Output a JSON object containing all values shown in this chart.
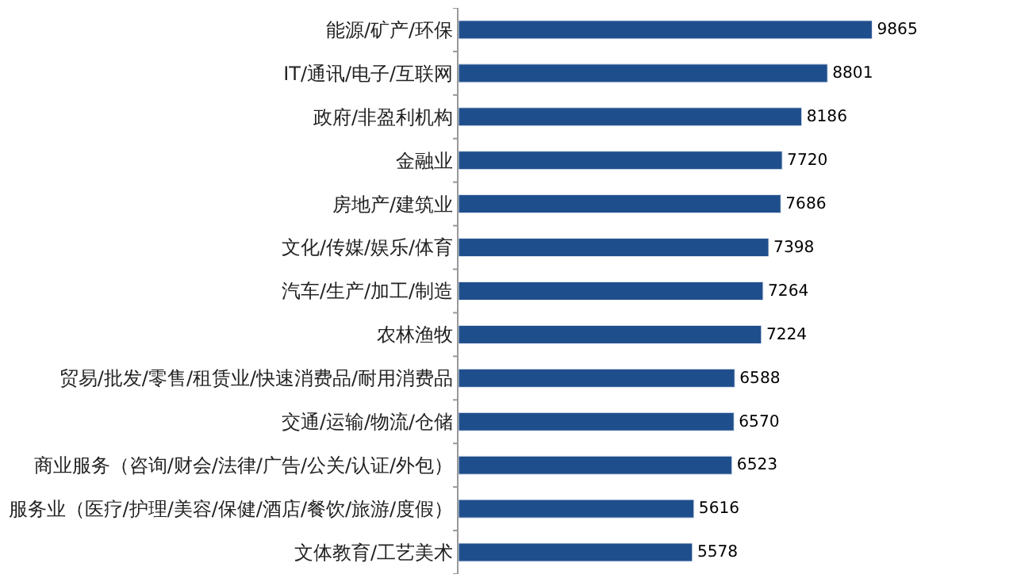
{
  "chart_data": {
    "type": "bar",
    "orientation": "horizontal",
    "categories": [
      "能源/矿产/环保",
      "IT/通讯/电子/互联网",
      "政府/非盈利机构",
      "金融业",
      "房地产/建筑业",
      "文化/传媒/娱乐/体育",
      "汽车/生产/加工/制造",
      "农林渔牧",
      "贸易/批发/零售/租赁业/快速消费品/耐用消费品",
      "交通/运输/物流/仓储",
      "商业服务（咨询/财会/法律/广告/公关/认证/外包）",
      "服务业（医疗/护理/美容/保健/酒店/餐饮/旅游/度假）",
      "文体教育/工艺美术"
    ],
    "values": [
      9865,
      8801,
      8186,
      7720,
      7686,
      7398,
      7264,
      7224,
      6588,
      6570,
      6523,
      5616,
      5578
    ],
    "color": "#1f4e8c",
    "data_labels": true,
    "legend": false
  }
}
